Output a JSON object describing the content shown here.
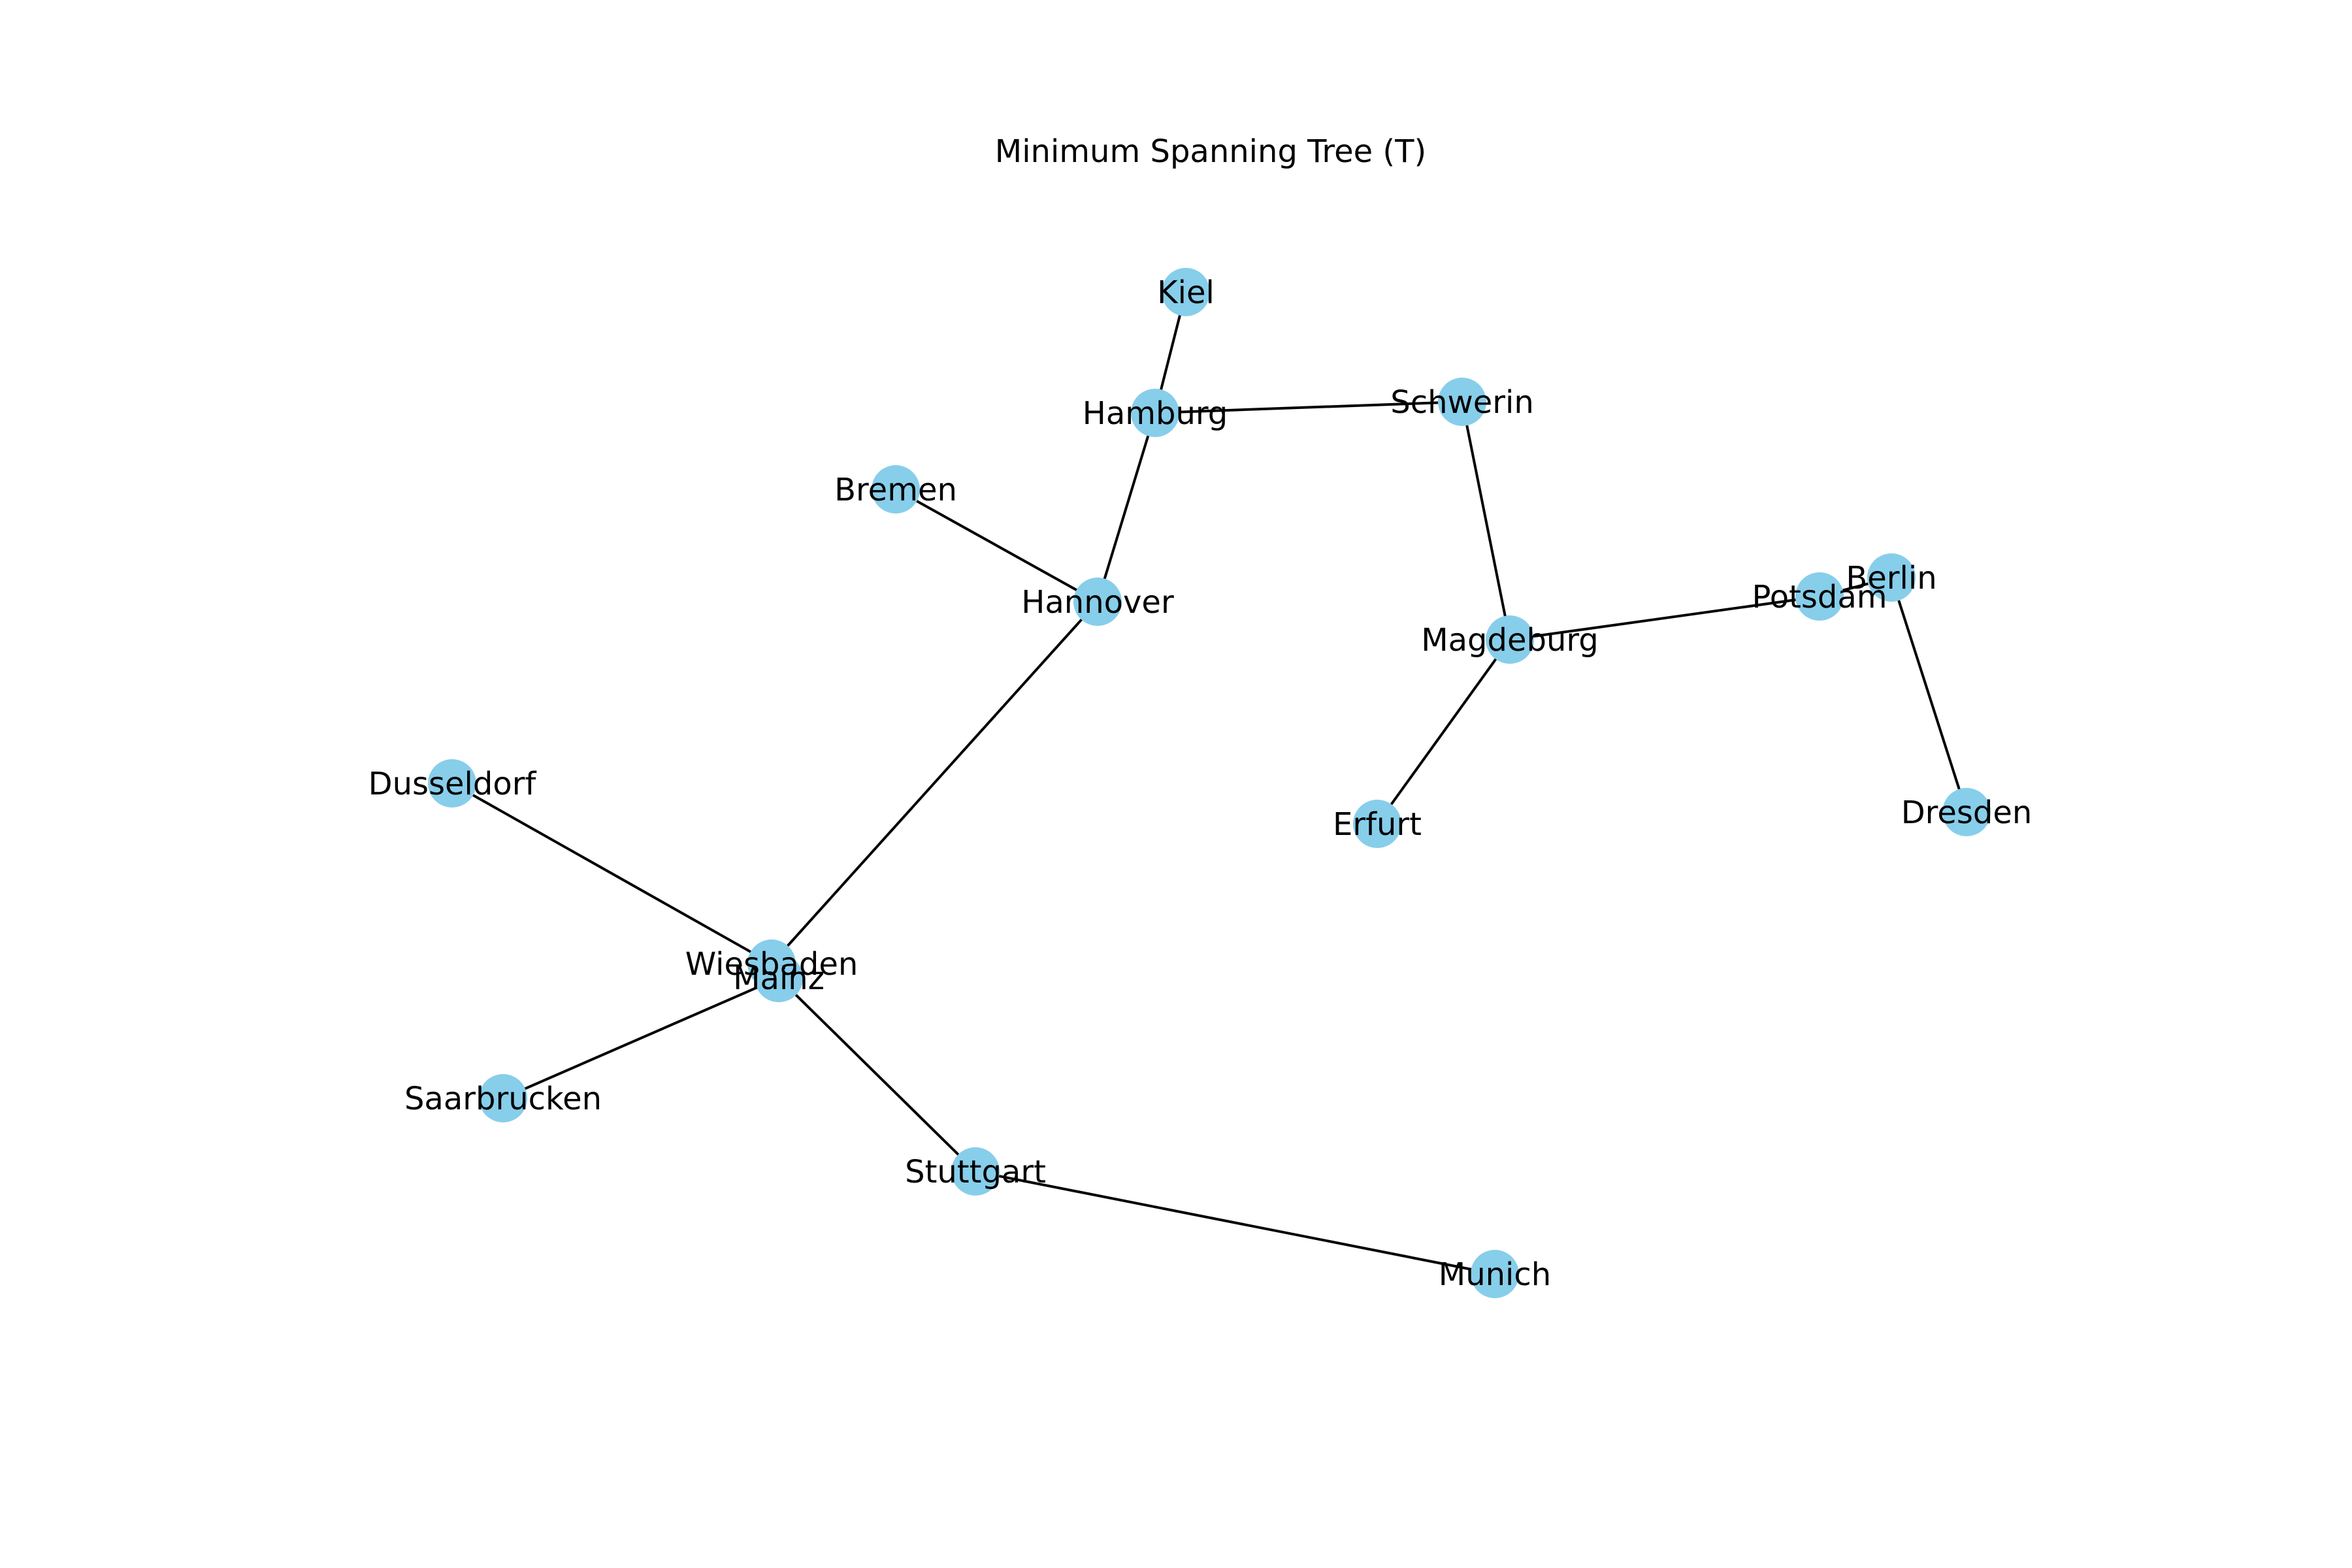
{
  "title": "Minimum Spanning Tree (T)",
  "colors": {
    "node": "#87ceeb",
    "edge": "#000000",
    "label": "#000000",
    "background": "#ffffff"
  },
  "nodes": [
    {
      "id": "Kiel",
      "label": "Kiel"
    },
    {
      "id": "Hamburg",
      "label": "Hamburg"
    },
    {
      "id": "Schwerin",
      "label": "Schwerin"
    },
    {
      "id": "Bremen",
      "label": "Bremen"
    },
    {
      "id": "Hannover",
      "label": "Hannover"
    },
    {
      "id": "Berlin",
      "label": "Berlin"
    },
    {
      "id": "Potsdam",
      "label": "Potsdam"
    },
    {
      "id": "Magdeburg",
      "label": "Magdeburg"
    },
    {
      "id": "Erfurt",
      "label": "Erfurt"
    },
    {
      "id": "Dresden",
      "label": "Dresden"
    },
    {
      "id": "Dusseldorf",
      "label": "Dusseldorf"
    },
    {
      "id": "Mainz",
      "label": "Mainz"
    },
    {
      "id": "Wiesbaden",
      "label": "Wiesbaden"
    },
    {
      "id": "Saarbrucken",
      "label": "Saarbrucken"
    },
    {
      "id": "Stuttgart",
      "label": "Stuttgart"
    },
    {
      "id": "Munich",
      "label": "Munich"
    }
  ],
  "edges": [
    {
      "source": "Kiel",
      "target": "Hamburg"
    },
    {
      "source": "Hamburg",
      "target": "Schwerin"
    },
    {
      "source": "Hamburg",
      "target": "Hannover"
    },
    {
      "source": "Bremen",
      "target": "Hannover"
    },
    {
      "source": "Schwerin",
      "target": "Magdeburg"
    },
    {
      "source": "Magdeburg",
      "target": "Potsdam"
    },
    {
      "source": "Potsdam",
      "target": "Berlin"
    },
    {
      "source": "Berlin",
      "target": "Dresden"
    },
    {
      "source": "Magdeburg",
      "target": "Erfurt"
    },
    {
      "source": "Hannover",
      "target": "Wiesbaden"
    },
    {
      "source": "Dusseldorf",
      "target": "Wiesbaden"
    },
    {
      "source": "Wiesbaden",
      "target": "Mainz"
    },
    {
      "source": "Mainz",
      "target": "Saarbrucken"
    },
    {
      "source": "Mainz",
      "target": "Stuttgart"
    },
    {
      "source": "Stuttgart",
      "target": "Munich"
    }
  ]
}
